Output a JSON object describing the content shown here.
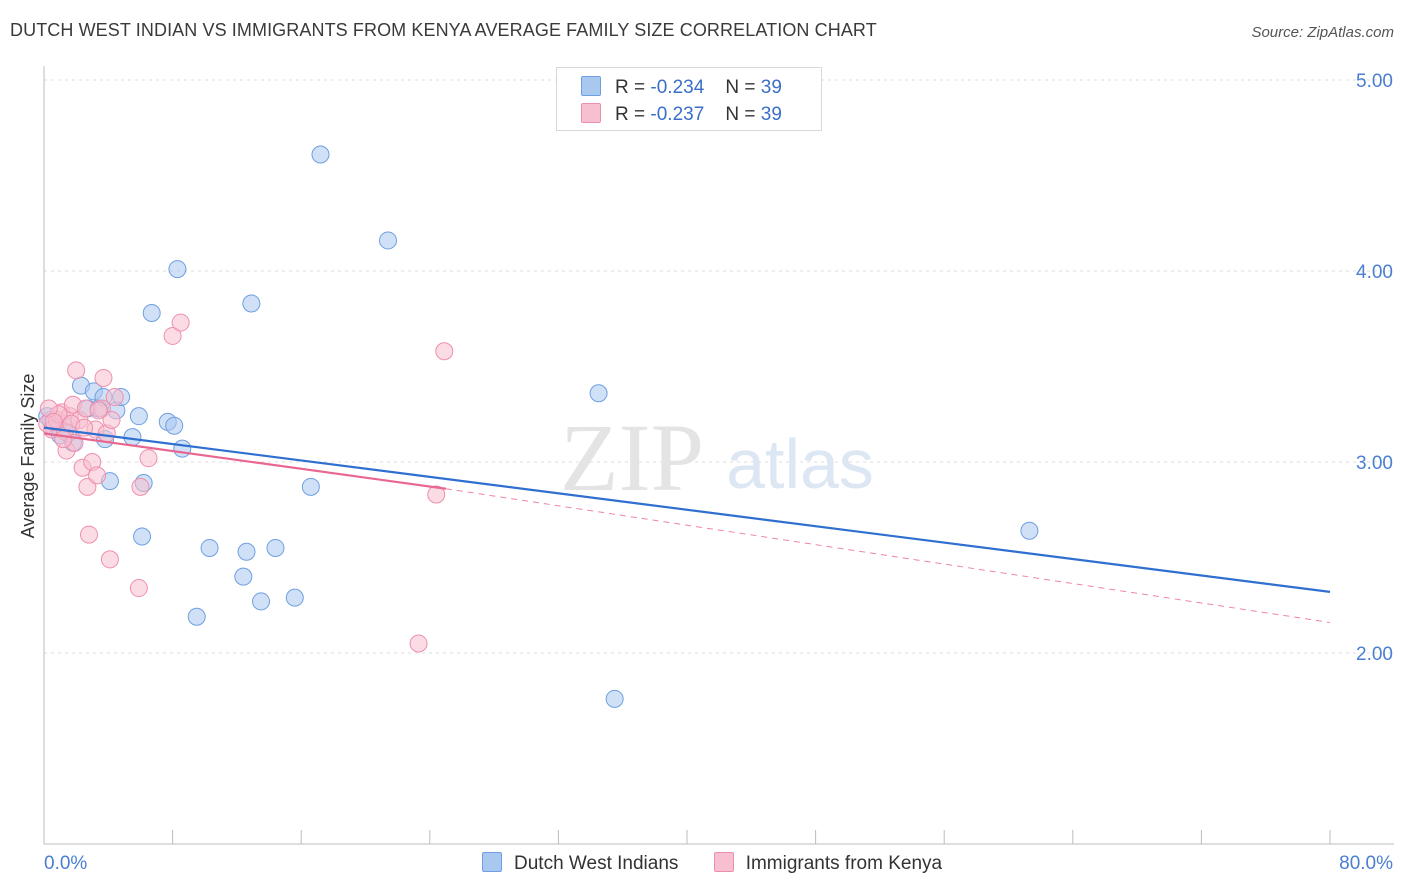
{
  "title": "DUTCH WEST INDIAN VS IMMIGRANTS FROM KENYA AVERAGE FAMILY SIZE CORRELATION CHART",
  "source": "Source: ZipAtlas.com",
  "watermark": {
    "zip": "ZIP",
    "atlas": "atlas"
  },
  "legend": {
    "r_label": "R =",
    "n_label": "N =",
    "rows": [
      {
        "r": "-0.234",
        "n": "39",
        "color": "#a9c8f0",
        "border": "#6f9fe0"
      },
      {
        "r": "-0.237",
        "n": "39",
        "color": "#f7bfd0",
        "border": "#ee8fae"
      }
    ]
  },
  "chart_data": {
    "type": "scatter",
    "xlabel": "",
    "ylabel": "Average Family Size",
    "xlim": [
      0,
      80
    ],
    "ylim": [
      1.0,
      5.0
    ],
    "x_tick_labels": [
      "0.0%",
      "80.0%"
    ],
    "y_ticks": [
      2.0,
      3.0,
      4.0,
      5.0
    ],
    "y_tick_labels": [
      "2.00",
      "3.00",
      "4.00",
      "5.00"
    ],
    "grid": true,
    "legend_position": "bottom-center",
    "series": [
      {
        "name": "Dutch West Indians",
        "color": "#a9c8f0",
        "stroke": "#6f9fe0",
        "line_color": "#2f6fd0",
        "points": [
          [
            0.4,
            3.22
          ],
          [
            0.6,
            3.18
          ],
          [
            1.0,
            3.14
          ],
          [
            1.2,
            3.2
          ],
          [
            1.5,
            3.15
          ],
          [
            1.8,
            3.1
          ],
          [
            2.3,
            3.4
          ],
          [
            2.7,
            3.28
          ],
          [
            3.1,
            3.37
          ],
          [
            3.4,
            3.28
          ],
          [
            3.7,
            3.34
          ],
          [
            3.8,
            3.12
          ],
          [
            4.1,
            2.9
          ],
          [
            4.5,
            3.27
          ],
          [
            4.8,
            3.34
          ],
          [
            5.5,
            3.13
          ],
          [
            5.9,
            3.24
          ],
          [
            6.1,
            2.61
          ],
          [
            6.2,
            2.89
          ],
          [
            6.7,
            3.78
          ],
          [
            7.7,
            3.21
          ],
          [
            8.1,
            3.19
          ],
          [
            8.3,
            4.01
          ],
          [
            8.6,
            3.07
          ],
          [
            9.5,
            2.19
          ],
          [
            10.3,
            2.55
          ],
          [
            12.4,
            2.4
          ],
          [
            12.6,
            2.53
          ],
          [
            12.9,
            3.83
          ],
          [
            13.5,
            2.27
          ],
          [
            14.4,
            2.55
          ],
          [
            15.6,
            2.29
          ],
          [
            16.6,
            2.87
          ],
          [
            17.2,
            4.61
          ],
          [
            21.4,
            4.16
          ],
          [
            34.5,
            3.36
          ],
          [
            35.5,
            1.76
          ],
          [
            61.3,
            2.64
          ],
          [
            0.2,
            3.24
          ]
        ],
        "trend": {
          "x0": 0,
          "y0": 3.18,
          "x1": 80,
          "y1": 2.32
        }
      },
      {
        "name": "Immigrants from Kenya",
        "color": "#f7bfd0",
        "stroke": "#ee8fae",
        "line_color": "#e8668f",
        "points": [
          [
            0.2,
            3.2
          ],
          [
            0.5,
            3.17
          ],
          [
            0.8,
            3.22
          ],
          [
            1.1,
            3.26
          ],
          [
            1.3,
            3.16
          ],
          [
            1.4,
            3.06
          ],
          [
            1.6,
            3.24
          ],
          [
            1.8,
            3.3
          ],
          [
            1.9,
            3.1
          ],
          [
            2.0,
            3.48
          ],
          [
            2.2,
            3.22
          ],
          [
            2.4,
            2.97
          ],
          [
            2.6,
            3.28
          ],
          [
            2.7,
            2.87
          ],
          [
            2.8,
            2.62
          ],
          [
            3.0,
            3.0
          ],
          [
            3.2,
            3.17
          ],
          [
            3.3,
            2.93
          ],
          [
            3.6,
            3.28
          ],
          [
            3.7,
            3.44
          ],
          [
            3.9,
            3.15
          ],
          [
            4.1,
            2.49
          ],
          [
            4.2,
            3.22
          ],
          [
            4.4,
            3.34
          ],
          [
            5.9,
            2.34
          ],
          [
            6.0,
            2.87
          ],
          [
            6.5,
            3.02
          ],
          [
            8.0,
            3.66
          ],
          [
            8.5,
            3.73
          ],
          [
            23.3,
            2.05
          ],
          [
            24.4,
            2.83
          ],
          [
            24.9,
            3.58
          ],
          [
            0.9,
            3.25
          ],
          [
            1.7,
            3.2
          ],
          [
            3.4,
            3.27
          ],
          [
            0.3,
            3.28
          ],
          [
            1.2,
            3.12
          ],
          [
            2.5,
            3.18
          ],
          [
            0.6,
            3.21
          ]
        ],
        "trend": {
          "x0": 0,
          "y0": 3.15,
          "x1": 25,
          "y1": 2.86
        },
        "trend_extension": {
          "x0": 25,
          "y0": 2.86,
          "x1": 80,
          "y1": 2.16
        }
      }
    ]
  }
}
